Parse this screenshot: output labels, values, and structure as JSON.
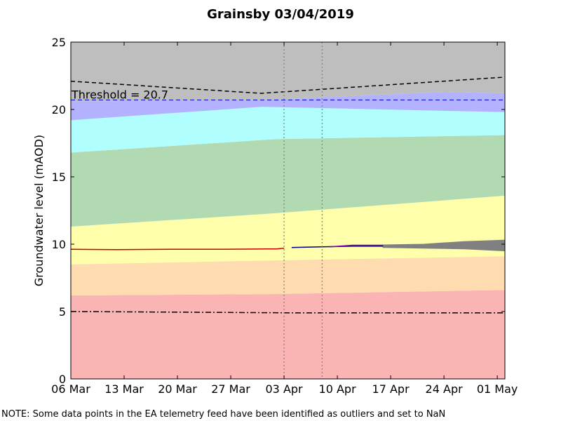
{
  "chart_data": {
    "type": "area",
    "title": "Grainsby 03/04/2019",
    "xlabel": "",
    "ylabel": "Groundwater level (mAOD)",
    "ylim": [
      0,
      25
    ],
    "xlim": [
      "2019-03-06",
      "2019-05-02"
    ],
    "x_tick_labels": [
      "06 Mar",
      "13 Mar",
      "20 Mar",
      "27 Mar",
      "03 Apr",
      "10 Apr",
      "17 Apr",
      "24 Apr",
      "01 May"
    ],
    "y_ticks": [
      0,
      5,
      10,
      15,
      20,
      25
    ],
    "grid": false,
    "bands": [
      {
        "color": "#fbb4b4",
        "lower": [
          {
            "x": "2019-03-06",
            "y": 0
          },
          {
            "x": "2019-05-02",
            "y": 0
          }
        ],
        "upper": [
          {
            "x": "2019-03-06",
            "y": 6.2
          },
          {
            "x": "2019-04-02",
            "y": 6.3
          },
          {
            "x": "2019-05-02",
            "y": 6.6
          }
        ]
      },
      {
        "color": "#fedcb0",
        "lower": [
          {
            "x": "2019-03-06",
            "y": 6.2
          },
          {
            "x": "2019-04-02",
            "y": 6.3
          },
          {
            "x": "2019-05-02",
            "y": 6.6
          }
        ],
        "upper": [
          {
            "x": "2019-03-06",
            "y": 8.5
          },
          {
            "x": "2019-04-02",
            "y": 8.8
          },
          {
            "x": "2019-05-02",
            "y": 9.1
          }
        ]
      },
      {
        "color": "#fefeab",
        "lower": [
          {
            "x": "2019-03-06",
            "y": 8.5
          },
          {
            "x": "2019-04-02",
            "y": 8.8
          },
          {
            "x": "2019-05-02",
            "y": 9.1
          }
        ],
        "upper": [
          {
            "x": "2019-03-06",
            "y": 11.3
          },
          {
            "x": "2019-04-02",
            "y": 12.3
          },
          {
            "x": "2019-05-02",
            "y": 13.6
          }
        ]
      },
      {
        "color": "#b2dab2",
        "lower": [
          {
            "x": "2019-03-06",
            "y": 11.3
          },
          {
            "x": "2019-04-02",
            "y": 12.3
          },
          {
            "x": "2019-05-02",
            "y": 13.6
          }
        ],
        "upper": [
          {
            "x": "2019-03-06",
            "y": 16.8
          },
          {
            "x": "2019-04-02",
            "y": 17.8
          },
          {
            "x": "2019-05-02",
            "y": 18.1
          }
        ]
      },
      {
        "color": "#b0fefe",
        "lower": [
          {
            "x": "2019-03-06",
            "y": 16.8
          },
          {
            "x": "2019-04-02",
            "y": 17.8
          },
          {
            "x": "2019-05-02",
            "y": 18.1
          }
        ],
        "upper": [
          {
            "x": "2019-03-06",
            "y": 19.2
          },
          {
            "x": "2019-03-31",
            "y": 20.2
          },
          {
            "x": "2019-05-02",
            "y": 19.8
          }
        ]
      },
      {
        "color": "#b2b2fe",
        "lower": [
          {
            "x": "2019-03-06",
            "y": 19.2
          },
          {
            "x": "2019-03-31",
            "y": 20.2
          },
          {
            "x": "2019-05-02",
            "y": 19.8
          }
        ],
        "upper": [
          {
            "x": "2019-03-06",
            "y": 20.6
          },
          {
            "x": "2019-03-31",
            "y": 20.7
          },
          {
            "x": "2019-04-24",
            "y": 21.3
          },
          {
            "x": "2019-05-02",
            "y": 21.2
          }
        ]
      },
      {
        "color": "#bebebe",
        "lower": [
          {
            "x": "2019-03-06",
            "y": 20.6
          },
          {
            "x": "2019-03-31",
            "y": 20.7
          },
          {
            "x": "2019-04-24",
            "y": 21.3
          },
          {
            "x": "2019-05-02",
            "y": 21.2
          }
        ],
        "upper": [
          {
            "x": "2019-03-06",
            "y": 25
          },
          {
            "x": "2019-05-02",
            "y": 25
          }
        ]
      }
    ],
    "series": [
      {
        "color": "#000000",
        "style": "dashed",
        "points": [
          {
            "x": "2019-03-06",
            "y": 22.1
          },
          {
            "x": "2019-03-31",
            "y": 21.2
          },
          {
            "x": "2019-05-02",
            "y": 22.4
          }
        ]
      },
      {
        "color": "#000000",
        "style": "dashdot",
        "points": [
          {
            "x": "2019-03-06",
            "y": 5.0
          },
          {
            "x": "2019-04-05",
            "y": 4.9
          },
          {
            "x": "2019-05-02",
            "y": 4.9
          }
        ]
      },
      {
        "color": "#cc0000",
        "style": "solid",
        "points": [
          {
            "x": "2019-03-06",
            "y": 9.62
          },
          {
            "x": "2019-03-12",
            "y": 9.6
          },
          {
            "x": "2019-03-19",
            "y": 9.62
          },
          {
            "x": "2019-03-26",
            "y": 9.62
          },
          {
            "x": "2019-04-02",
            "y": 9.65
          },
          {
            "x": "2019-04-03",
            "y": 9.7
          }
        ]
      },
      {
        "color": "#000080",
        "style": "solid",
        "points": [
          {
            "x": "2019-04-04",
            "y": 9.75
          },
          {
            "x": "2019-04-08",
            "y": 9.8
          },
          {
            "x": "2019-04-12",
            "y": 9.85
          },
          {
            "x": "2019-04-16",
            "y": 9.85
          }
        ]
      },
      {
        "color": "#7b00c8",
        "style": "solid",
        "points": [
          {
            "x": "2019-04-09",
            "y": 9.8
          },
          {
            "x": "2019-04-12",
            "y": 9.92
          },
          {
            "x": "2019-04-16",
            "y": 9.92
          }
        ]
      }
    ],
    "forecast_ensemble": {
      "color": "#808080",
      "x_start": "2019-04-16",
      "x_end": "2019-05-02",
      "y_low": [
        9.75,
        9.7,
        9.65,
        9.5
      ],
      "y_high": [
        9.95,
        10.0,
        10.2,
        10.3
      ]
    },
    "reference_lines": [
      {
        "y": 20.7,
        "color": "#0000cc",
        "style": "dashed",
        "label": "Threshold = 20.7"
      }
    ],
    "vertical_lines": [
      {
        "x": "2019-04-03",
        "style": "dotted",
        "color": "#808080"
      },
      {
        "x": "2019-04-08",
        "style": "dotted",
        "color": "#808080"
      }
    ]
  },
  "footer": {
    "note": "NOTE: Some data points in the EA telemetry feed have been identified as outliers and set to NaN"
  }
}
